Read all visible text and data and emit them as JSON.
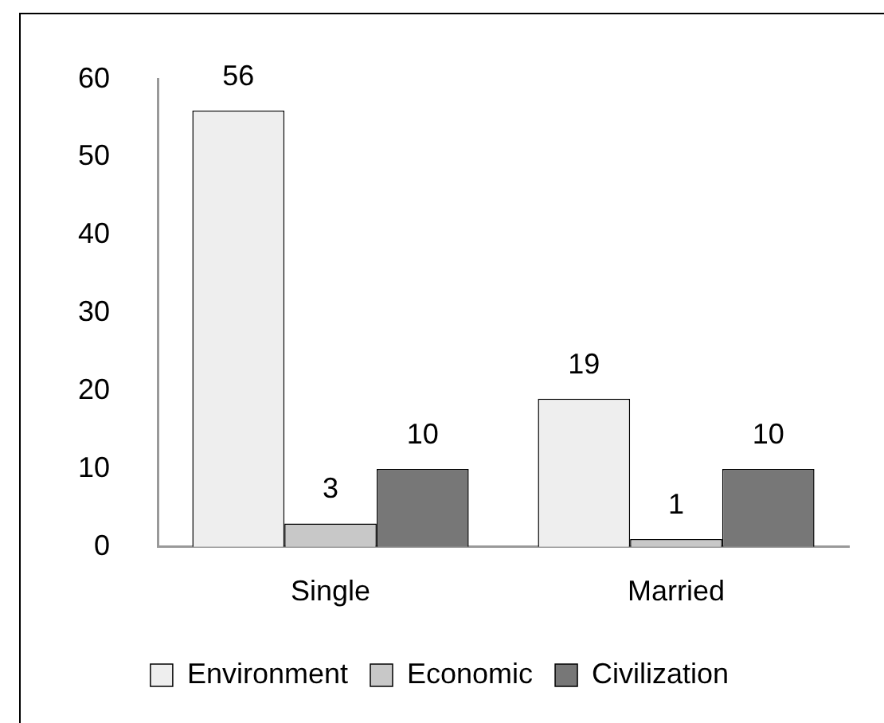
{
  "chart_data": {
    "type": "bar",
    "categories": [
      "Single",
      "Married"
    ],
    "series": [
      {
        "name": "Environment",
        "color": "#eeeeee",
        "values": [
          56,
          19
        ]
      },
      {
        "name": "Economic",
        "color": "#c8c8c8",
        "values": [
          3,
          1
        ]
      },
      {
        "name": "Civilization",
        "color": "#777777",
        "values": [
          10,
          10
        ]
      }
    ],
    "ylim": [
      0,
      60
    ],
    "yticks": [
      0,
      10,
      20,
      30,
      40,
      50,
      60
    ],
    "grid": false,
    "legend": "bottom",
    "data_labels": true
  }
}
